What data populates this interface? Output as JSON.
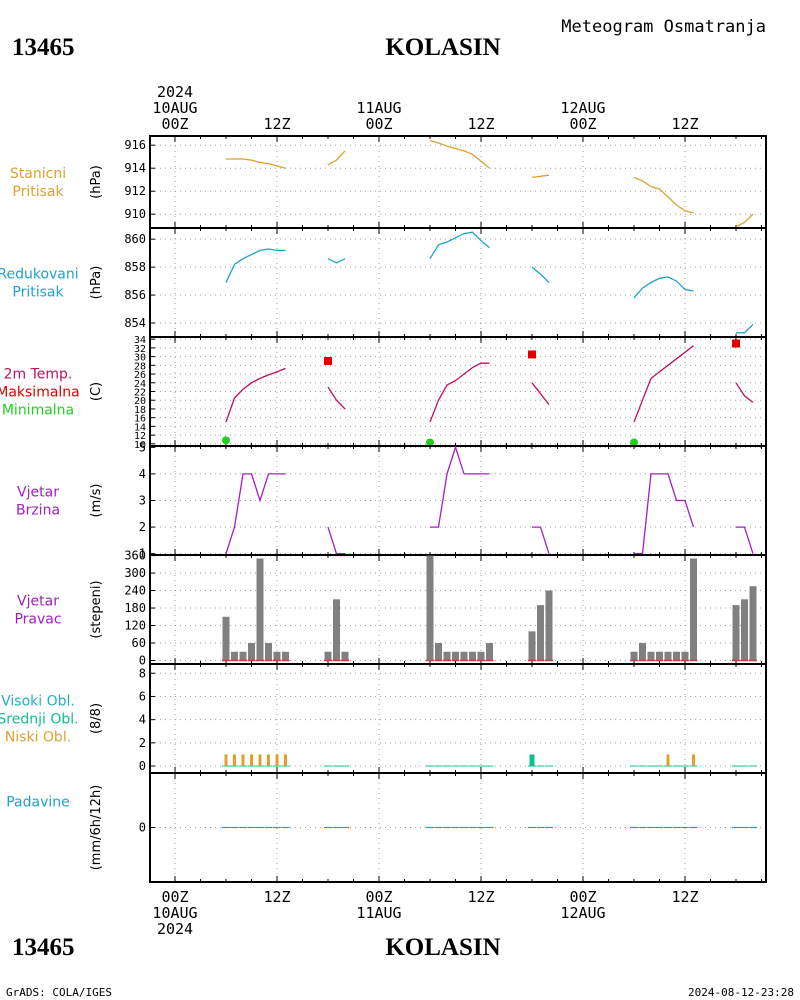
{
  "header": {
    "station_id": "13465",
    "station_name": "KOLASIN",
    "product": "Meteogram Osmatranja"
  },
  "time_axis": {
    "top": [
      {
        "pos": 0,
        "lines": [
          "2024",
          "10AUG",
          "00Z"
        ]
      },
      {
        "pos": 12,
        "lines": [
          "12Z"
        ]
      },
      {
        "pos": 24,
        "lines": [
          "11AUG",
          "00Z"
        ]
      },
      {
        "pos": 36,
        "lines": [
          "12Z"
        ]
      },
      {
        "pos": 48,
        "lines": [
          "12AUG",
          "00Z"
        ]
      },
      {
        "pos": 60,
        "lines": [
          "12Z"
        ]
      }
    ],
    "bottom": [
      {
        "pos": 0,
        "lines": [
          "00Z",
          "10AUG",
          "2024"
        ]
      },
      {
        "pos": 12,
        "lines": [
          "12Z"
        ]
      },
      {
        "pos": 24,
        "lines": [
          "00Z",
          "11AUG"
        ]
      },
      {
        "pos": 36,
        "lines": [
          "12Z"
        ]
      },
      {
        "pos": 48,
        "lines": [
          "00Z",
          "12AUG"
        ]
      },
      {
        "pos": 60,
        "lines": [
          "12Z"
        ]
      }
    ]
  },
  "footer": {
    "credit": "GrADS: COLA/IGES",
    "timestamp": "2024-08-12-23:28"
  },
  "colors": {
    "station_pressure": "#e0a030",
    "reduced_pressure": "#20a0d0",
    "tmax": "#e00000",
    "tmin": "#20d020",
    "temperature": "#c01060",
    "wind": "#a020c0",
    "wind_dir_bar": "#808080",
    "wind_dir_base": "#c04040",
    "high_cloud": "#20b0c0",
    "mid_cloud": "#10c090",
    "low_cloud": "#e0a030",
    "precip": "#20a0d0",
    "grid": "#a0a0a0"
  },
  "chart_data": [
    {
      "type": "line",
      "panel": "station_pressure",
      "label_lines": [
        "Stanicni",
        "Pritisak"
      ],
      "ylabel": "(hPa)",
      "yticks": [
        "910",
        "912",
        "914",
        "916"
      ],
      "ylim": [
        908.8,
        916.8
      ],
      "x_unit": "hours since 10AUG2024 00Z",
      "segments": [
        [
          [
            6,
            914.8
          ],
          [
            8,
            914.8
          ],
          [
            9,
            914.7
          ],
          [
            10,
            914.5
          ],
          [
            11,
            914.4
          ],
          [
            12,
            914.2
          ],
          [
            13,
            914.0
          ]
        ],
        [
          [
            18,
            914.3
          ],
          [
            19,
            914.7
          ],
          [
            20,
            915.5
          ]
        ],
        [
          [
            30,
            916.4
          ],
          [
            31,
            916.2
          ],
          [
            32,
            915.9
          ],
          [
            33,
            915.7
          ],
          [
            34,
            915.5
          ],
          [
            35,
            915.2
          ],
          [
            36,
            914.6
          ],
          [
            37,
            914.0
          ]
        ],
        [
          [
            42,
            913.2
          ],
          [
            43,
            913.3
          ],
          [
            44,
            913.4
          ]
        ],
        [
          [
            54,
            913.2
          ],
          [
            55,
            912.9
          ],
          [
            56,
            912.4
          ],
          [
            57,
            912.2
          ],
          [
            58,
            911.5
          ],
          [
            59,
            910.8
          ],
          [
            60,
            910.3
          ],
          [
            61,
            910.1
          ]
        ],
        [
          [
            66,
            908.9
          ],
          [
            67,
            909.3
          ],
          [
            68,
            910.0
          ]
        ]
      ]
    },
    {
      "type": "line",
      "panel": "reduced_pressure",
      "label_lines": [
        "Redukovani",
        "Pritisak"
      ],
      "ylabel": "(hPa)",
      "yticks": [
        "854",
        "856",
        "858",
        "860"
      ],
      "ylim": [
        853.0,
        860.8
      ],
      "x_unit": "hours since 10AUG2024 00Z",
      "segments": [
        [
          [
            6,
            856.9
          ],
          [
            7,
            858.2
          ],
          [
            8,
            858.6
          ],
          [
            9,
            858.9
          ],
          [
            10,
            859.2
          ],
          [
            11,
            859.3
          ],
          [
            12,
            859.2
          ],
          [
            13,
            859.2
          ]
        ],
        [
          [
            18,
            858.6
          ],
          [
            19,
            858.3
          ],
          [
            20,
            858.6
          ]
        ],
        [
          [
            30,
            858.6
          ],
          [
            31,
            859.6
          ],
          [
            32,
            859.8
          ],
          [
            33,
            860.1
          ],
          [
            34,
            860.4
          ],
          [
            35,
            860.5
          ],
          [
            36,
            859.9
          ],
          [
            37,
            859.4
          ]
        ],
        [
          [
            42,
            858.0
          ],
          [
            43,
            857.5
          ],
          [
            44,
            856.9
          ]
        ],
        [
          [
            54,
            855.8
          ],
          [
            55,
            856.5
          ],
          [
            56,
            856.9
          ],
          [
            57,
            857.2
          ],
          [
            58,
            857.3
          ],
          [
            59,
            857.0
          ],
          [
            60,
            856.4
          ],
          [
            61,
            856.3
          ]
        ],
        [
          [
            66,
            853.3
          ],
          [
            67,
            853.3
          ],
          [
            68,
            853.9
          ]
        ]
      ]
    },
    {
      "type": "line",
      "panel": "temperature",
      "label_lines": [
        "2m Temp.",
        "Maksimalna",
        "Minimalna"
      ],
      "ylabel": "(C)",
      "yticks": [
        "10",
        "12",
        "14",
        "16",
        "18",
        "20",
        "22",
        "24",
        "26",
        "28",
        "30",
        "32",
        "34"
      ],
      "ylim": [
        9.5,
        34.5
      ],
      "x_unit": "hours since 10AUG2024 00Z",
      "segments": [
        [
          [
            6,
            15.0
          ],
          [
            7,
            20.5
          ],
          [
            8,
            22.5
          ],
          [
            9,
            24.0
          ],
          [
            10,
            25.0
          ],
          [
            11,
            25.8
          ],
          [
            12,
            26.5
          ],
          [
            13,
            27.3
          ]
        ],
        [
          [
            18,
            23.0
          ],
          [
            19,
            20.0
          ],
          [
            20,
            18.0
          ]
        ],
        [
          [
            30,
            15.0
          ],
          [
            31,
            20.0
          ],
          [
            32,
            23.5
          ],
          [
            33,
            24.5
          ],
          [
            34,
            26.0
          ],
          [
            35,
            27.5
          ],
          [
            36,
            28.5
          ],
          [
            37,
            28.5
          ]
        ],
        [
          [
            42,
            24.0
          ],
          [
            43,
            21.5
          ],
          [
            44,
            19.0
          ]
        ],
        [
          [
            54,
            15.0
          ],
          [
            55,
            20.0
          ],
          [
            56,
            25.0
          ],
          [
            57,
            26.5
          ],
          [
            58,
            28.0
          ],
          [
            59,
            29.5
          ],
          [
            60,
            31.0
          ],
          [
            61,
            32.5
          ]
        ],
        [
          [
            66,
            24.0
          ],
          [
            67,
            21.0
          ],
          [
            68,
            19.5
          ]
        ]
      ],
      "tmax": [
        [
          18,
          29.0
        ],
        [
          42,
          30.5
        ],
        [
          66,
          33.0
        ]
      ],
      "tmin": [
        [
          6,
          10.8
        ],
        [
          30,
          10.3
        ],
        [
          54,
          10.3
        ]
      ]
    },
    {
      "type": "line",
      "panel": "wind_speed",
      "label_lines": [
        "Vjetar",
        "Brzina"
      ],
      "ylabel": "(m/s)",
      "yticks": [
        "1",
        "2",
        "3",
        "4",
        "5"
      ],
      "ylim": [
        0.95,
        5.05
      ],
      "x_unit": "hours since 10AUG2024 00Z",
      "segments": [
        [
          [
            6,
            1
          ],
          [
            7,
            2
          ],
          [
            8,
            4
          ],
          [
            9,
            4
          ],
          [
            10,
            3
          ],
          [
            11,
            4
          ],
          [
            12,
            4
          ],
          [
            13,
            4
          ]
        ],
        [
          [
            18,
            2
          ],
          [
            19,
            1
          ],
          [
            20,
            1
          ]
        ],
        [
          [
            30,
            2
          ],
          [
            31,
            2
          ],
          [
            32,
            4
          ],
          [
            33,
            5
          ],
          [
            34,
            4
          ],
          [
            35,
            4
          ],
          [
            36,
            4
          ],
          [
            37,
            4
          ]
        ],
        [
          [
            42,
            2
          ],
          [
            43,
            2
          ],
          [
            44,
            1
          ]
        ],
        [
          [
            54,
            1
          ],
          [
            55,
            1
          ],
          [
            56,
            4
          ],
          [
            57,
            4
          ],
          [
            58,
            4
          ],
          [
            59,
            3
          ],
          [
            60,
            3
          ],
          [
            61,
            2
          ]
        ],
        [
          [
            66,
            2
          ],
          [
            67,
            2
          ],
          [
            68,
            1
          ]
        ]
      ]
    },
    {
      "type": "bar",
      "panel": "wind_direction",
      "label_lines": [
        "Vjetar",
        "Pravac"
      ],
      "ylabel": "(stepeni)",
      "yticks": [
        "0",
        "60",
        "120",
        "180",
        "240",
        "300",
        "360"
      ],
      "ylim": [
        -12,
        362
      ],
      "x_unit": "hours since 10AUG2024 00Z",
      "bars": [
        [
          6,
          150
        ],
        [
          7,
          30
        ],
        [
          8,
          30
        ],
        [
          9,
          60
        ],
        [
          10,
          350
        ],
        [
          11,
          60
        ],
        [
          12,
          30
        ],
        [
          13,
          30
        ],
        [
          18,
          30
        ],
        [
          19,
          210
        ],
        [
          20,
          30
        ],
        [
          30,
          360
        ],
        [
          31,
          60
        ],
        [
          32,
          30
        ],
        [
          33,
          30
        ],
        [
          34,
          30
        ],
        [
          35,
          30
        ],
        [
          36,
          30
        ],
        [
          37,
          60
        ],
        [
          42,
          100
        ],
        [
          43,
          190
        ],
        [
          44,
          240
        ],
        [
          54,
          30
        ],
        [
          55,
          60
        ],
        [
          56,
          30
        ],
        [
          57,
          30
        ],
        [
          58,
          30
        ],
        [
          59,
          30
        ],
        [
          60,
          30
        ],
        [
          61,
          350
        ],
        [
          66,
          190
        ],
        [
          67,
          210
        ],
        [
          68,
          255
        ]
      ]
    },
    {
      "type": "bar",
      "panel": "cloud_cover",
      "label_lines": [
        "Visoki Obl.",
        "Srednji Obl.",
        "Niski Obl."
      ],
      "ylabel": "(8/8)",
      "yticks": [
        "0",
        "2",
        "4",
        "6",
        "8"
      ],
      "ylim": [
        -0.6,
        8.8
      ],
      "x_unit": "hours since 10AUG2024 00Z",
      "low": [
        [
          6,
          1
        ],
        [
          7,
          1
        ],
        [
          8,
          1
        ],
        [
          9,
          1
        ],
        [
          10,
          1
        ],
        [
          11,
          1
        ],
        [
          12,
          1
        ],
        [
          13,
          1
        ],
        [
          58,
          1
        ],
        [
          61,
          1
        ]
      ],
      "mid": [
        [
          42,
          1
        ]
      ],
      "high": [],
      "observed_hours": [
        6,
        7,
        8,
        9,
        10,
        11,
        12,
        13,
        18,
        19,
        20,
        30,
        31,
        32,
        33,
        34,
        35,
        36,
        37,
        42,
        43,
        44,
        54,
        55,
        56,
        57,
        58,
        59,
        60,
        61,
        66,
        67,
        68
      ]
    },
    {
      "type": "bar",
      "panel": "precipitation",
      "label_lines": [
        "Padavine"
      ],
      "ylabel": "(mm/6h/12h)",
      "yticks": [
        "0"
      ],
      "ylim": [
        -4,
        4
      ],
      "x_unit": "hours since 10AUG2024 00Z",
      "values": [
        [
          6,
          0
        ],
        [
          7,
          0
        ],
        [
          8,
          0
        ],
        [
          9,
          0
        ],
        [
          10,
          0
        ],
        [
          11,
          0
        ],
        [
          12,
          0
        ],
        [
          13,
          0
        ],
        [
          18,
          0
        ],
        [
          19,
          0
        ],
        [
          20,
          0
        ],
        [
          30,
          0
        ],
        [
          31,
          0
        ],
        [
          32,
          0
        ],
        [
          33,
          0
        ],
        [
          34,
          0
        ],
        [
          35,
          0
        ],
        [
          36,
          0
        ],
        [
          37,
          0
        ],
        [
          42,
          0
        ],
        [
          43,
          0
        ],
        [
          44,
          0
        ],
        [
          54,
          0
        ],
        [
          55,
          0
        ],
        [
          56,
          0
        ],
        [
          57,
          0
        ],
        [
          58,
          0
        ],
        [
          59,
          0
        ],
        [
          60,
          0
        ],
        [
          61,
          0
        ],
        [
          66,
          0
        ],
        [
          67,
          0
        ],
        [
          68,
          0
        ]
      ]
    }
  ]
}
